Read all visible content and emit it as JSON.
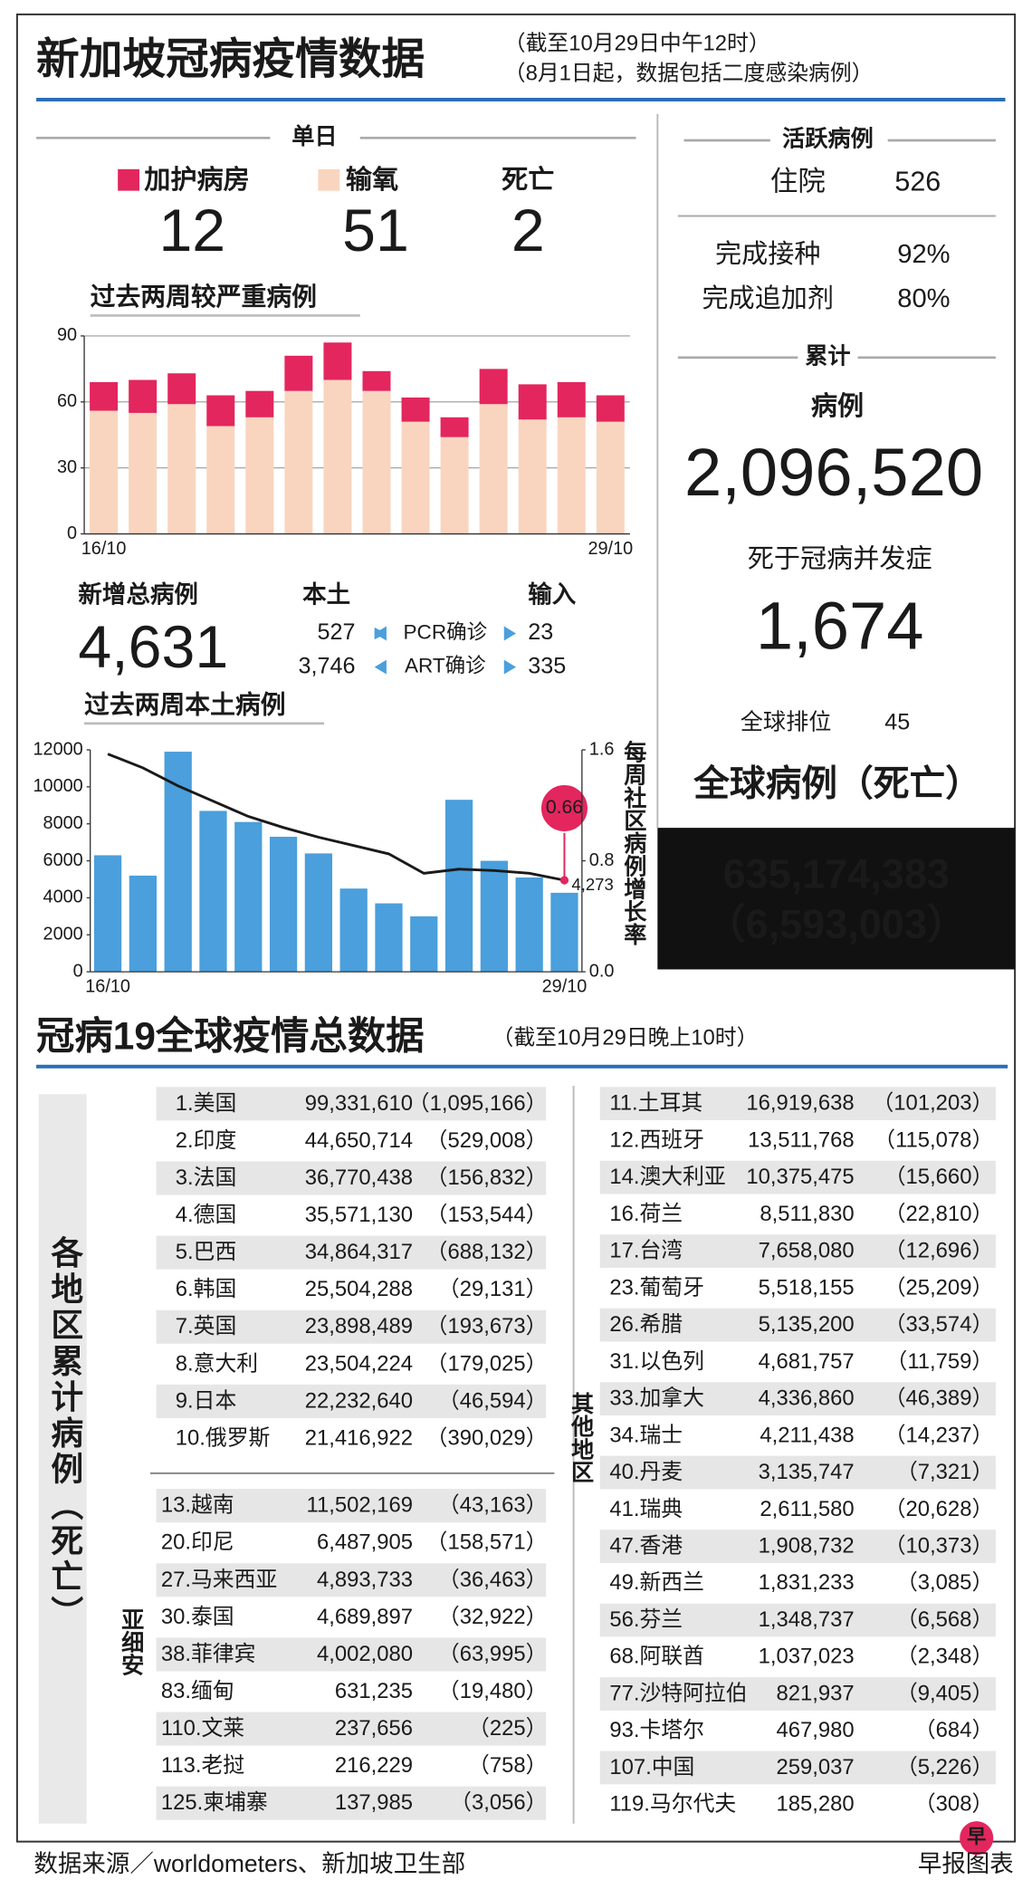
{
  "header": {
    "title": "新加坡冠病疫情数据",
    "notes": [
      "（截至10月29日中午12时）",
      "（8月1日起，数据包括二度感染病例）"
    ]
  },
  "single_day": {
    "title": "单日",
    "icu": 12,
    "oxygen": 51,
    "deaths_label": "死亡",
    "deaths": 2
  },
  "local_cases": {
    "title": "新增总病例",
    "total": "4,631",
    "local_label": "本土",
    "imported_label": "输入",
    "rows": [
      [
        "527",
        "PCR确诊",
        "23"
      ],
      [
        "3,746",
        "ART确诊",
        "335"
      ]
    ]
  },
  "chart_data": [
    {
      "type": "bar",
      "stacked": true,
      "title": "过去两周较严重病例",
      "categories": [
        "16/10",
        null,
        null,
        null,
        null,
        null,
        null,
        null,
        null,
        null,
        null,
        null,
        null,
        "29/10"
      ],
      "series": [
        {
          "name": "输氧",
          "color": "#f9d5bf",
          "values": [
            56,
            55,
            59,
            49,
            53,
            65,
            70,
            65,
            51,
            44,
            59,
            52,
            53,
            51
          ]
        },
        {
          "name": "加护病房",
          "color": "#e3265e",
          "values": [
            13,
            15,
            14,
            14,
            12,
            16,
            17,
            9,
            11,
            9,
            16,
            16,
            16,
            12
          ]
        }
      ],
      "ylim": [
        0,
        90
      ],
      "yticks": [
        0,
        30,
        60,
        90
      ],
      "grid": true
    },
    {
      "type": "bar",
      "title": "过去两周本土病例",
      "categories": [
        "16/10",
        null,
        null,
        null,
        null,
        null,
        null,
        null,
        null,
        null,
        null,
        null,
        null,
        "29/10"
      ],
      "series": [
        {
          "color": "#4a9fdc",
          "values": [
            6300,
            5200,
            11900,
            8700,
            8100,
            7300,
            6400,
            4500,
            3700,
            3000,
            9300,
            6000,
            5100,
            4273
          ],
          "value_labels": [
            null,
            null,
            null,
            null,
            null,
            null,
            null,
            null,
            null,
            null,
            null,
            null,
            null,
            "4,273"
          ]
        },
        {
          "name": "每周社区病例增长率",
          "type": "line",
          "axis": "y2",
          "color": "#1a1a1a",
          "values": [
            1.57,
            1.47,
            1.34,
            1.23,
            1.12,
            1.04,
            0.97,
            0.91,
            0.85,
            0.71,
            0.74,
            0.73,
            0.71,
            0.66
          ],
          "value_labels": [
            null,
            null,
            null,
            null,
            null,
            null,
            null,
            null,
            null,
            null,
            null,
            null,
            null,
            "0.66"
          ]
        }
      ],
      "ylim": [
        0,
        12000
      ],
      "yticks": [
        0,
        2000,
        4000,
        6000,
        8000,
        10000,
        12000
      ],
      "y2lim": [
        0,
        1.6
      ],
      "y2ticks": [
        {
          "value": 0,
          "label": "0.0"
        },
        0.8,
        1.6
      ],
      "grid": false
    }
  ],
  "active": {
    "title": "活跃病例",
    "hospitalised_label": "住院",
    "hospitalised": 526,
    "vaccinated_label": "完成接种",
    "vaccinated": "92%",
    "booster_label": "完成追加剂",
    "booster": "80%"
  },
  "cumulative": {
    "title": "累计",
    "cases_label": "病例",
    "cases": "2,096,520",
    "deaths_label": "死于冠病并发症",
    "deaths": "1,674",
    "rank_label": "全球排位",
    "rank": 45
  },
  "global": {
    "title": "全球病例（死亡）",
    "cases": "635,174,383",
    "deaths": "（6,593,003）"
  },
  "world": {
    "title": "冠病19全球疫情总数据",
    "note": "（截至10月29日晚上10时）",
    "side_label": "各地区累计病例（死亡）",
    "asean_label": "亚细安",
    "others_label": "其他地区",
    "top": [
      [
        "1.美国",
        "99,331,610",
        "（1,095,166）"
      ],
      [
        "2.印度",
        "44,650,714",
        "（529,008）"
      ],
      [
        "3.法国",
        "36,770,438",
        "（156,832）"
      ],
      [
        "4.德国",
        "35,571,130",
        "（153,544）"
      ],
      [
        "5.巴西",
        "34,864,317",
        "（688,132）"
      ],
      [
        "6.韩国",
        "25,504,288",
        "（29,131）"
      ],
      [
        "7.英国",
        "23,898,489",
        "（193,673）"
      ],
      [
        "8.意大利",
        "23,504,224",
        "（179,025）"
      ],
      [
        "9.日本",
        "22,232,640",
        "（46,594）"
      ],
      [
        "10.俄罗斯",
        "21,416,922",
        "（390,029）"
      ]
    ],
    "asean": [
      [
        "13.越南",
        "11,502,169",
        "（43,163）"
      ],
      [
        "20.印尼",
        "6,487,905",
        "（158,571）"
      ],
      [
        "27.马来西亚",
        "4,893,733",
        "（36,463）"
      ],
      [
        "30.泰国",
        "4,689,897",
        "（32,922）"
      ],
      [
        "38.菲律宾",
        "4,002,080",
        "（63,995）"
      ],
      [
        "83.缅甸",
        "631,235",
        "（19,480）"
      ],
      [
        "110.文莱",
        "237,656",
        "（225）"
      ],
      [
        "113.老挝",
        "216,229",
        "（758）"
      ],
      [
        "125.柬埔寨",
        "137,985",
        "（3,056）"
      ]
    ],
    "others": [
      [
        "11.土耳其",
        "16,919,638",
        "（101,203）"
      ],
      [
        "12.西班牙",
        "13,511,768",
        "（115,078）"
      ],
      [
        "14.澳大利亚",
        "10,375,475",
        "（15,660）"
      ],
      [
        "16.荷兰",
        "8,511,830",
        "（22,810）"
      ],
      [
        "17.台湾",
        "7,658,080",
        "（12,696）"
      ],
      [
        "23.葡萄牙",
        "5,518,155",
        "（25,209）"
      ],
      [
        "26.希腊",
        "5,135,200",
        "（33,574）"
      ],
      [
        "31.以色列",
        "4,681,757",
        "（11,759）"
      ],
      [
        "33.加拿大",
        "4,336,860",
        "（46,389）"
      ],
      [
        "34.瑞士",
        "4,211,438",
        "（14,237）"
      ],
      [
        "40.丹麦",
        "3,135,747",
        "（7,321）"
      ],
      [
        "41.瑞典",
        "2,611,580",
        "（20,628）"
      ],
      [
        "47.香港",
        "1,908,732",
        "（10,373）"
      ],
      [
        "49.新西兰",
        "1,831,233",
        "（3,085）"
      ],
      [
        "56.芬兰",
        "1,348,737",
        "（6,568）"
      ],
      [
        "68.阿联酋",
        "1,037,023",
        "（2,348）"
      ],
      [
        "77.沙特阿拉伯",
        "821,937",
        "（9,405）"
      ],
      [
        "93.卡塔尔",
        "467,980",
        "（684）"
      ],
      [
        "107.中国",
        "259,037",
        "（5,226）"
      ],
      [
        "119.马尔代夫",
        "185,280",
        "（308）"
      ]
    ]
  },
  "footer": {
    "source": "数据来源／worldometers、新加坡卫生部",
    "credit": "早报图表",
    "logo": "早"
  }
}
